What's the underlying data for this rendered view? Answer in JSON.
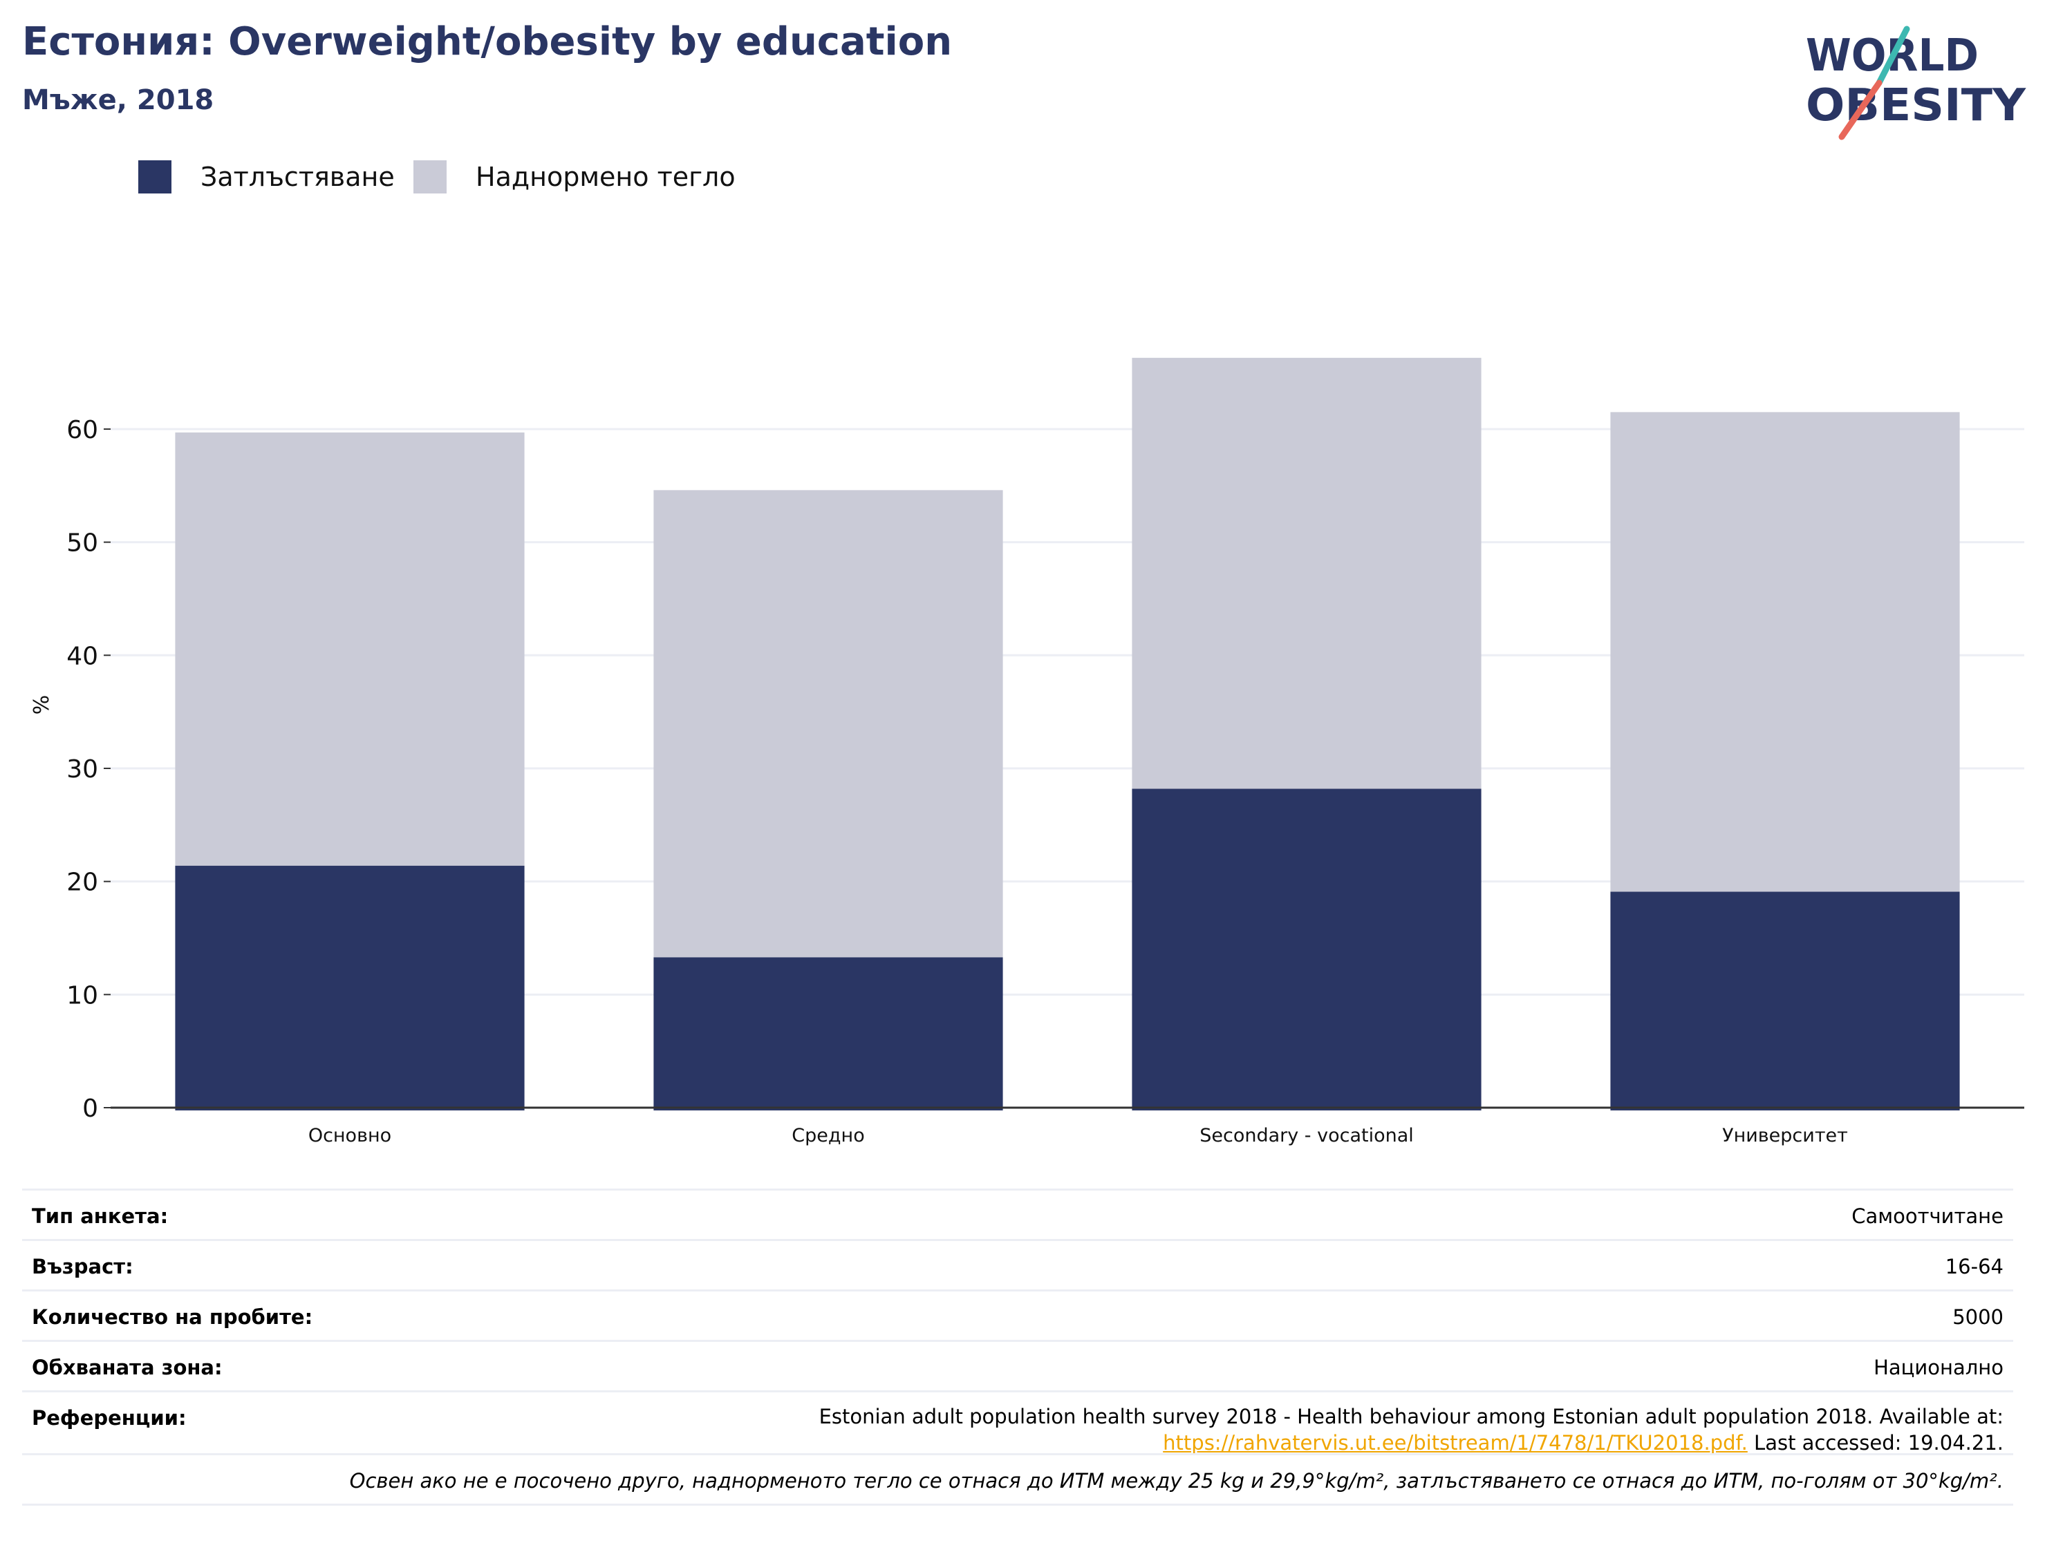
{
  "header": {
    "title": "Естония: Overweight/obesity by education",
    "subtitle": "Мъже, 2018"
  },
  "logo": {
    "line1": "WORLD",
    "line2": "OBESITY",
    "slash_colors": [
      "#3db8b1",
      "#e8675a"
    ],
    "text_color": "#2a3664"
  },
  "colors": {
    "obesity": "#2a3664",
    "overweight": "#cacbd7",
    "gridline": "#eceef4",
    "axis": "#333333",
    "link": "#f0a500"
  },
  "chart_data": {
    "type": "bar",
    "stacked": true,
    "categories": [
      "Основно",
      "Средно",
      "Secondary - vocational",
      "Университет"
    ],
    "series": [
      {
        "name": "Затлъстяване",
        "values": [
          21.4,
          13.3,
          28.2,
          19.1
        ]
      },
      {
        "name": "Наднормено тегло",
        "values": [
          38.3,
          41.3,
          38.1,
          42.4
        ]
      }
    ],
    "ylabel": "%",
    "ylim": [
      0,
      68
    ],
    "yticks": [
      0,
      10,
      20,
      30,
      40,
      50,
      60
    ],
    "grid": true,
    "legend": "top-left"
  },
  "info": {
    "survey_type_label": "Тип анкета:",
    "survey_type_value": "Самоотчитане",
    "age_label": "Възраст:",
    "age_value": "16-64",
    "sample_label": "Количество на пробите:",
    "sample_value": "5000",
    "area_label": "Обхваната зона:",
    "area_value": "Национално",
    "references_label": "Референции:",
    "references_text": "Estonian adult population health survey 2018 - Health behaviour among Estonian adult population 2018. Available at:",
    "references_link": "https://rahvatervis.ut.ee/bitstream/1/7478/1/TKU2018.pdf.",
    "references_accessed": "Last accessed: 19.04.21.",
    "note": "Освен ако не е посочено друго, наднорменото тегло се отнася до ИТМ между 25 kg и 29,9°kg/m², затлъстяването се отнася до ИТМ, по-голям от 30°kg/m²."
  }
}
